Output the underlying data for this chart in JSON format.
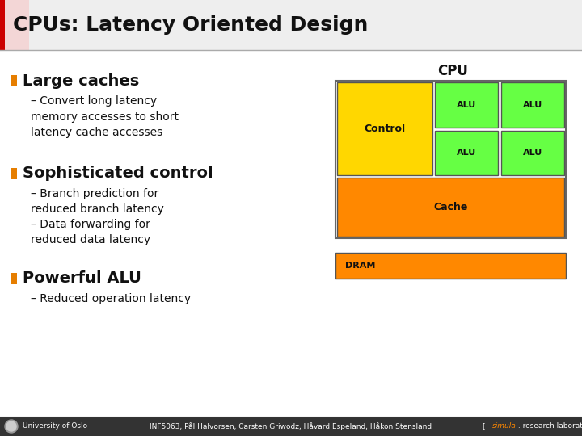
{
  "title": "CPUs: Latency Oriented Design",
  "title_bar_color": "#cc0000",
  "title_fontsize": 18,
  "title_color": "#111111",
  "background_color": "#ffffff",
  "bullet_color": "#e67e00",
  "bullet1": "Large caches",
  "sub1_1": "Convert long latency\nmemory accesses to short\nlatency cache accesses",
  "bullet2": "Sophisticated control",
  "sub2_1": "Branch prediction for\nreduced branch latency",
  "sub2_2": "Data forwarding for\nreduced data latency",
  "bullet3": "Powerful ALU",
  "sub3_1": "Reduced operation latency",
  "cpu_label": "CPU",
  "control_label": "Control",
  "alu_label": "ALU",
  "cache_label": "Cache",
  "dram_label": "DRAM",
  "control_color": "#ffd700",
  "alu_color": "#66ff44",
  "cache_color": "#ff8800",
  "dram_color": "#ff8800",
  "footer_bg": "#333333",
  "footer_text1": "University of Oslo",
  "footer_text2": "INF5063, Pål Halvorsen, Carsten Griwodz, Håvard Espeland, Håkon Stensland",
  "footer_text3": "[ simula . research laboratory ]",
  "footer_color": "#ffffff",
  "simula_color": "#ff8800",
  "bullet_fontsize": 14,
  "sub_fontsize": 10,
  "footer_fontsize": 6.5
}
